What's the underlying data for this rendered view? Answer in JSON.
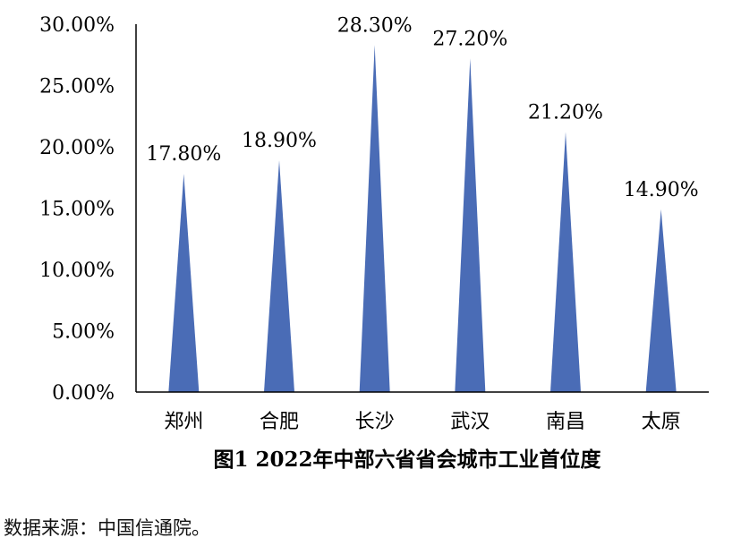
{
  "chart_data": {
    "type": "bar",
    "bar_shape": "pointed-triangle",
    "title": "图1 2022年中部六省省会城市工业首位度",
    "xlabel": "",
    "ylabel": "",
    "categories": [
      "郑州",
      "合肥",
      "长沙",
      "武汉",
      "南昌",
      "太原"
    ],
    "values": [
      17.8,
      18.9,
      28.3,
      27.2,
      21.2,
      14.9
    ],
    "value_labels": [
      "17.80%",
      "18.90%",
      "28.30%",
      "27.20%",
      "21.20%",
      "14.90%"
    ],
    "ylim": [
      0,
      30
    ],
    "yticks": [
      0,
      5,
      10,
      15,
      20,
      25,
      30
    ],
    "ytick_labels": [
      "0.00%",
      "5.00%",
      "10.00%",
      "15.00%",
      "20.00%",
      "25.00%",
      "30.00%"
    ],
    "grid": false,
    "legend": "none",
    "bar_color": "#4a6cb6",
    "axis_color": "#000000"
  },
  "source_note": "数据来源：中国信通院。"
}
